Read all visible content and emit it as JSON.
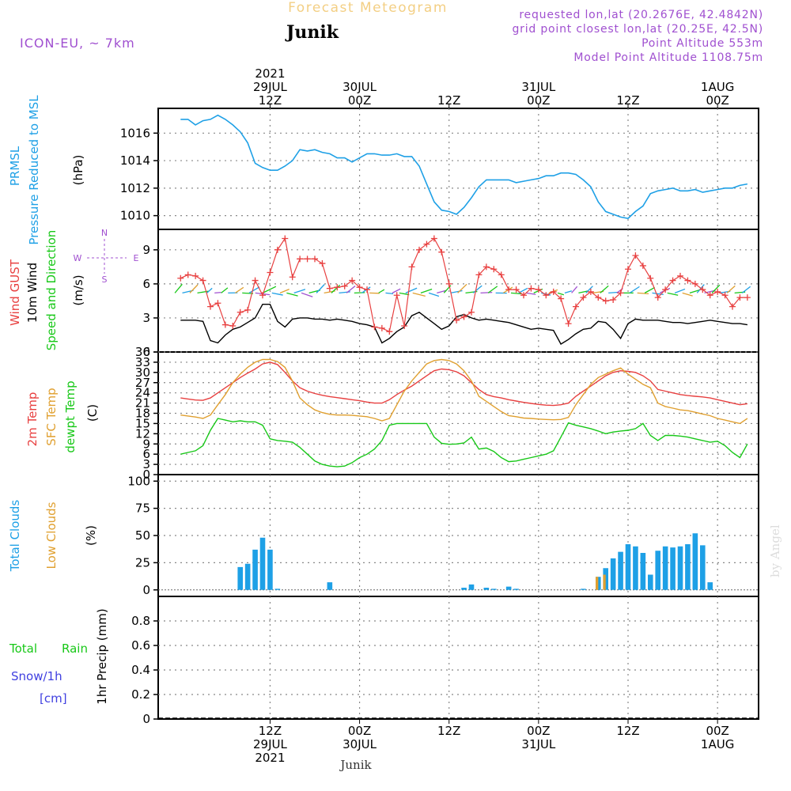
{
  "header": {
    "title": "Forecast Meteogram",
    "station": "Junik",
    "model": "ICON-EU,  ~ 7km",
    "requested": "requested lon,lat (20.2676E, 42.4842N)",
    "gridpoint": "grid point closest lon,lat (20.25E, 42.5N)",
    "point_alt": "Point Altitude 553m",
    "model_alt": "Model Point Altitude 1108.75m",
    "credit": "by Angel",
    "footer_station": "Junik"
  },
  "colors": {
    "pressure": "#1ea0e6",
    "gust": "#e84040",
    "wind": "#000000",
    "wind_dir": "#18c818",
    "t2m": "#e84040",
    "tsfc": "#e0a030",
    "dewpt": "#18c818",
    "total_clouds": "#1ea0e6",
    "low_clouds": "#e0a030",
    "rain": "#18c818",
    "snow": "#4040e0",
    "meta": "#a050d0"
  },
  "time_axis": {
    "top_labels": [
      {
        "hour": 12,
        "lines": [
          "2021",
          "29JUL",
          "12Z"
        ]
      },
      {
        "hour": 24,
        "lines": [
          "30JUL",
          "00Z"
        ]
      },
      {
        "hour": 36,
        "lines": [
          "12Z"
        ]
      },
      {
        "hour": 48,
        "lines": [
          "31JUL",
          "00Z"
        ]
      },
      {
        "hour": 60,
        "lines": [
          "12Z"
        ]
      },
      {
        "hour": 72,
        "lines": [
          "1AUG",
          "00Z"
        ]
      }
    ],
    "bottom_labels": [
      {
        "hour": 12,
        "lines": [
          "12Z",
          "29JUL",
          "2021"
        ]
      },
      {
        "hour": 24,
        "lines": [
          "00Z",
          "30JUL"
        ]
      },
      {
        "hour": 36,
        "lines": [
          "12Z"
        ]
      },
      {
        "hour": 48,
        "lines": [
          "00Z",
          "31JUL"
        ]
      },
      {
        "hour": 60,
        "lines": [
          "12Z"
        ]
      },
      {
        "hour": 72,
        "lines": [
          "00Z",
          "1AUG"
        ]
      }
    ]
  },
  "panels": {
    "pressure": {
      "label1": "PRMSL",
      "label2": "Pressure Reduced to MSL",
      "unit": "(hPa)"
    },
    "wind": {
      "label_gust": "Wind GUST",
      "label_wind": "10m Wind",
      "label_dir": "Speed and Direction",
      "unit": "(m/s)",
      "compass_n": "N",
      "compass_s": "S",
      "compass_w": "W",
      "compass_e": "E"
    },
    "temp": {
      "label_t": "2m Temp",
      "label_sfc": "SFC Temp",
      "label_dew": "dewpt Temp",
      "unit": "(C)"
    },
    "clouds": {
      "label_total": "Total Clouds",
      "label_low": "Low Clouds",
      "unit": "(%)"
    },
    "precip": {
      "label_total": "Total",
      "label_rain": "Rain",
      "label_snow": "Snow/1h",
      "label_cm": "[cm]",
      "unit": "1hr Precip (mm)"
    }
  },
  "chart_data": [
    {
      "type": "line",
      "title": "PRMSL Pressure Reduced to MSL",
      "ylabel": "hPa",
      "ylim": [
        1009,
        1017.8
      ],
      "yticks": [
        1010,
        1012,
        1014,
        1016
      ],
      "x": [
        0,
        1,
        2,
        3,
        4,
        5,
        6,
        7,
        8,
        9,
        10,
        11,
        12,
        13,
        14,
        15,
        16,
        17,
        18,
        19,
        20,
        21,
        22,
        23,
        24,
        25,
        26,
        27,
        28,
        29,
        30,
        31,
        32,
        33,
        34,
        35,
        36,
        37,
        38,
        39,
        40,
        41,
        42,
        43,
        44,
        45,
        46,
        47,
        48,
        49,
        50,
        51,
        52,
        53,
        54,
        55,
        56,
        57,
        58,
        59,
        60,
        61,
        62,
        63,
        64,
        65,
        66,
        67,
        68,
        69,
        70,
        71,
        72,
        73,
        74,
        75,
        76
      ],
      "series": [
        {
          "name": "PRMSL",
          "values": [
            1017,
            1017,
            1016.6,
            1016.9,
            1017.0,
            1017.3,
            1017.0,
            1016.6,
            1016.1,
            1015.3,
            1013.8,
            1013.5,
            1013.3,
            1013.3,
            1013.6,
            1014.0,
            1014.8,
            1014.7,
            1014.8,
            1014.6,
            1014.5,
            1014.2,
            1014.2,
            1013.9,
            1014.2,
            1014.5,
            1014.5,
            1014.4,
            1014.4,
            1014.5,
            1014.3,
            1014.3,
            1013.6,
            1012.3,
            1011.0,
            1010.4,
            1010.3,
            1010.1,
            1010.6,
            1011.3,
            1012.1,
            1012.6,
            1012.6,
            1012.6,
            1012.6,
            1012.4,
            1012.5,
            1012.6,
            1012.7,
            1012.9,
            1012.9,
            1013.1,
            1013.1,
            1013.0,
            1012.6,
            1012.1,
            1011.0,
            1010.3,
            1010.1,
            1009.9,
            1009.8,
            1010.3,
            1010.7,
            1011.6,
            1011.8,
            1011.9,
            1012.0,
            1011.8,
            1011.8,
            1011.9,
            1011.7,
            1011.8,
            1011.9,
            1012.0,
            1012.0,
            1012.2,
            1012.3
          ]
        }
      ]
    },
    {
      "type": "line",
      "title": "Wind GUST / 10m Wind Speed and Direction",
      "ylabel": "m/s",
      "ylim": [
        0,
        10.8
      ],
      "yticks": [
        0,
        3,
        6,
        9
      ],
      "x": [
        0,
        1,
        2,
        3,
        4,
        5,
        6,
        7,
        8,
        9,
        10,
        11,
        12,
        13,
        14,
        15,
        16,
        17,
        18,
        19,
        20,
        21,
        22,
        23,
        24,
        25,
        26,
        27,
        28,
        29,
        30,
        31,
        32,
        33,
        34,
        35,
        36,
        37,
        38,
        39,
        40,
        41,
        42,
        43,
        44,
        45,
        46,
        47,
        48,
        49,
        50,
        51,
        52,
        53,
        54,
        55,
        56,
        57,
        58,
        59,
        60,
        61,
        62,
        63,
        64,
        65,
        66,
        67,
        68,
        69,
        70,
        71,
        72,
        73,
        74,
        75,
        76
      ],
      "series": [
        {
          "name": "Wind GUST",
          "values": [
            6.5,
            6.8,
            6.7,
            6.3,
            4.0,
            4.3,
            2.4,
            2.3,
            3.5,
            3.7,
            6.3,
            5.0,
            7.0,
            9.0,
            10.0,
            6.6,
            8.2,
            8.2,
            8.2,
            7.8,
            5.6,
            5.7,
            5.8,
            6.3,
            5.7,
            5.5,
            2.2,
            2.1,
            1.8,
            5.0,
            2.3,
            7.5,
            9.0,
            9.5,
            10.0,
            8.8,
            6.0,
            2.8,
            3.1,
            3.5,
            6.8,
            7.5,
            7.3,
            6.8,
            5.5,
            5.5,
            5.0,
            5.6,
            5.5,
            5.0,
            5.3,
            4.7,
            2.5,
            4.0,
            4.8,
            5.3,
            4.8,
            4.5,
            4.6,
            5.2,
            7.3,
            8.5,
            7.6,
            6.5,
            4.8,
            5.5,
            6.3,
            6.7,
            6.3,
            6.0,
            5.5,
            5.0,
            5.3,
            5.0,
            4.0,
            4.8,
            4.8
          ]
        },
        {
          "name": "10m Wind",
          "values": [
            2.8,
            2.8,
            2.8,
            2.7,
            1.0,
            0.8,
            1.5,
            2.0,
            2.2,
            2.6,
            3.0,
            4.2,
            4.2,
            2.7,
            2.2,
            2.9,
            3.0,
            3.0,
            2.9,
            2.9,
            2.8,
            2.9,
            2.8,
            2.7,
            2.5,
            2.4,
            2.2,
            0.8,
            1.2,
            1.8,
            2.2,
            3.2,
            3.5,
            3.0,
            2.5,
            2.0,
            2.3,
            3.1,
            3.3,
            3.0,
            2.8,
            2.9,
            2.8,
            2.7,
            2.6,
            2.4,
            2.2,
            2.0,
            2.1,
            2.0,
            1.9,
            0.7,
            1.1,
            1.6,
            2.0,
            2.1,
            2.7,
            2.6,
            2.0,
            1.2,
            2.5,
            2.9,
            2.8,
            2.8,
            2.8,
            2.7,
            2.6,
            2.6,
            2.5,
            2.6,
            2.7,
            2.8,
            2.7,
            2.6,
            2.5,
            2.5,
            2.4
          ]
        }
      ]
    },
    {
      "type": "line",
      "title": "2m Temp / SFC Temp / dewpt Temp",
      "ylabel": "C",
      "ylim": [
        0,
        36
      ],
      "yticks": [
        0,
        3,
        6,
        9,
        12,
        15,
        18,
        21,
        24,
        27,
        30,
        33,
        36
      ],
      "x": [
        0,
        1,
        2,
        3,
        4,
        5,
        6,
        7,
        8,
        9,
        10,
        11,
        12,
        13,
        14,
        15,
        16,
        17,
        18,
        19,
        20,
        21,
        22,
        23,
        24,
        25,
        26,
        27,
        28,
        29,
        30,
        31,
        32,
        33,
        34,
        35,
        36,
        37,
        38,
        39,
        40,
        41,
        42,
        43,
        44,
        45,
        46,
        47,
        48,
        49,
        50,
        51,
        52,
        53,
        54,
        55,
        56,
        57,
        58,
        59,
        60,
        61,
        62,
        63,
        64,
        65,
        66,
        67,
        68,
        69,
        70,
        71,
        72,
        73,
        74,
        75,
        76
      ],
      "series": [
        {
          "name": "2m Temp",
          "values": [
            22.5,
            22.2,
            21.9,
            21.8,
            22.5,
            24.0,
            25.5,
            27.0,
            28.5,
            29.8,
            31.0,
            32.5,
            33.0,
            32.3,
            30.0,
            27.5,
            25.5,
            24.5,
            23.8,
            23.3,
            22.9,
            22.6,
            22.3,
            22.0,
            21.7,
            21.3,
            21.0,
            21.0,
            22.0,
            23.5,
            24.8,
            26.0,
            27.5,
            29.0,
            30.5,
            31.0,
            30.8,
            30.2,
            29.0,
            27.0,
            25.0,
            23.5,
            22.9,
            22.5,
            22.0,
            21.6,
            21.2,
            20.9,
            20.6,
            20.4,
            20.3,
            20.5,
            21.0,
            23.0,
            24.5,
            26.0,
            27.5,
            29.0,
            30.0,
            30.5,
            30.3,
            30.0,
            29.0,
            27.5,
            25.0,
            24.5,
            24.0,
            23.5,
            23.2,
            23.0,
            22.8,
            22.5,
            22.0,
            21.5,
            21.0,
            20.5,
            20.8
          ]
        },
        {
          "name": "SFC Temp",
          "values": [
            17.5,
            17.2,
            16.9,
            16.5,
            17.5,
            20.5,
            23.5,
            27.0,
            29.5,
            31.5,
            33.0,
            33.8,
            33.8,
            33.2,
            31.5,
            27.5,
            22.5,
            20.5,
            19.0,
            18.2,
            17.7,
            17.5,
            17.5,
            17.4,
            17.2,
            17.0,
            16.5,
            15.8,
            16.5,
            20.5,
            24.5,
            27.5,
            30.0,
            32.5,
            33.5,
            33.8,
            33.5,
            32.5,
            30.5,
            27.5,
            23.0,
            21.5,
            20.0,
            18.5,
            17.3,
            17.0,
            16.6,
            16.5,
            16.3,
            16.2,
            16.1,
            16.2,
            16.8,
            20.5,
            23.5,
            26.5,
            28.5,
            29.5,
            30.5,
            31.3,
            29.5,
            28.0,
            26.5,
            25.5,
            21.0,
            20.0,
            19.5,
            19.0,
            18.8,
            18.3,
            17.8,
            17.3,
            16.5,
            16.0,
            15.5,
            15.0,
            16.5
          ]
        },
        {
          "name": "dewpt Temp",
          "values": [
            6.0,
            6.5,
            7.0,
            8.5,
            13.0,
            16.5,
            16.0,
            15.5,
            15.8,
            15.5,
            15.5,
            14.5,
            10.5,
            10.0,
            9.8,
            9.5,
            8.0,
            6.0,
            4.0,
            3.0,
            2.5,
            2.3,
            2.5,
            3.5,
            5.0,
            6.0,
            7.5,
            10.0,
            14.5,
            15.0,
            15.0,
            15.0,
            15.0,
            15.0,
            11.0,
            9.2,
            8.9,
            9.0,
            9.3,
            11.0,
            7.5,
            7.8,
            6.8,
            5.0,
            3.8,
            4.0,
            4.5,
            5.0,
            5.5,
            6.0,
            7.0,
            11.0,
            15.2,
            14.5,
            14.0,
            13.5,
            12.8,
            12.0,
            12.5,
            12.8,
            13.0,
            13.5,
            15.0,
            11.5,
            10.0,
            11.5,
            11.5,
            11.3,
            11.0,
            10.5,
            10.0,
            9.5,
            9.8,
            8.5,
            6.5,
            5.0,
            9.0
          ]
        }
      ]
    },
    {
      "type": "bar",
      "title": "Total Clouds / Low Clouds",
      "ylabel": "%",
      "ylim": [
        -6,
        106
      ],
      "yticks": [
        0,
        25,
        50,
        75,
        100
      ],
      "x": [
        0,
        1,
        2,
        3,
        4,
        5,
        6,
        7,
        8,
        9,
        10,
        11,
        12,
        13,
        14,
        15,
        16,
        17,
        18,
        19,
        20,
        21,
        22,
        23,
        24,
        25,
        26,
        27,
        28,
        29,
        30,
        31,
        32,
        33,
        34,
        35,
        36,
        37,
        38,
        39,
        40,
        41,
        42,
        43,
        44,
        45,
        46,
        47,
        48,
        49,
        50,
        51,
        52,
        53,
        54,
        55,
        56,
        57,
        58,
        59,
        60,
        61,
        62,
        63,
        64,
        65,
        66,
        67,
        68,
        69,
        70,
        71,
        72,
        73,
        74,
        75,
        76
      ],
      "series": [
        {
          "name": "Total Clouds",
          "values": [
            0,
            0,
            0,
            0,
            0,
            0,
            0,
            0,
            21,
            24,
            37,
            48,
            37,
            1,
            0,
            0,
            0,
            0,
            0,
            0,
            7,
            0,
            0,
            0,
            0,
            0,
            0,
            0,
            0,
            0,
            0,
            0,
            0,
            0,
            0,
            0,
            0,
            0,
            2,
            5,
            0,
            2,
            1,
            0,
            3,
            1,
            0,
            0,
            0,
            0,
            0,
            0,
            0,
            0,
            1,
            0,
            12,
            20,
            29,
            35,
            42,
            40,
            34,
            14,
            36,
            40,
            39,
            40,
            42,
            52,
            41,
            7,
            0,
            0,
            0,
            0,
            0
          ]
        },
        {
          "name": "Low Clouds",
          "values": [
            0,
            0,
            0,
            0,
            0,
            0,
            0,
            0,
            0,
            0,
            0,
            0,
            0,
            0,
            0,
            0,
            0,
            0,
            0,
            0,
            0,
            0,
            0,
            0,
            0,
            0,
            0,
            0,
            0,
            0,
            0,
            0,
            0,
            0,
            0,
            0,
            0,
            0,
            0,
            0,
            0,
            0,
            0,
            0,
            0,
            0,
            0,
            0,
            0,
            0,
            0,
            0,
            0,
            0,
            0,
            0,
            12,
            14,
            0,
            0,
            0,
            0,
            0,
            0,
            0,
            0,
            0,
            0,
            0,
            0,
            0,
            0,
            0,
            0,
            0,
            0,
            0
          ]
        }
      ]
    },
    {
      "type": "bar",
      "title": "1hr Precip (mm)",
      "ylabel": "1hr Precip (mm)",
      "ylim": [
        0,
        1.0
      ],
      "yticks": [
        0,
        0.2,
        0.4,
        0.6,
        0.8
      ],
      "x": [
        0,
        12,
        24,
        36,
        48,
        60,
        72,
        76
      ],
      "series": [
        {
          "name": "Total Rain",
          "values": [
            0,
            0,
            0,
            0,
            0,
            0,
            0,
            0
          ]
        }
      ]
    }
  ]
}
